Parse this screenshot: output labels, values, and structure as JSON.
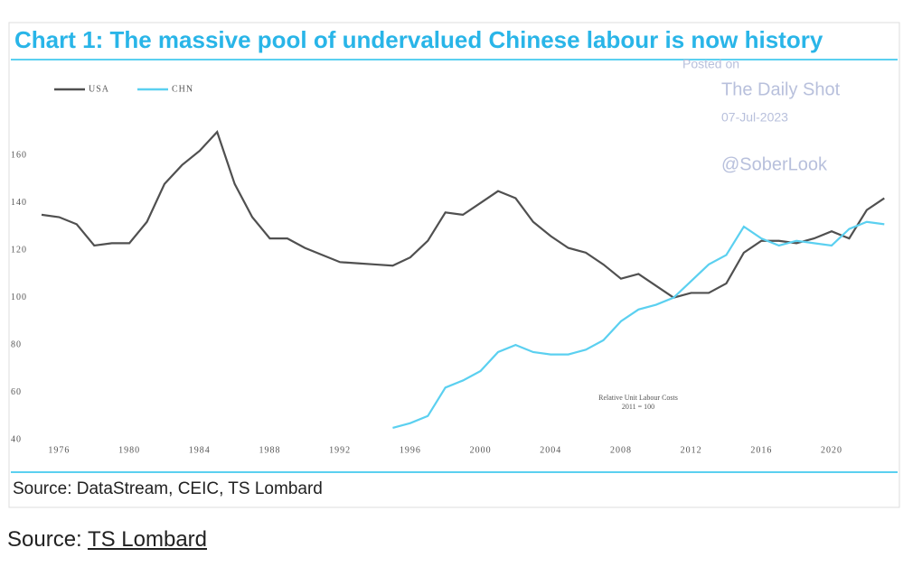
{
  "chart_data": {
    "type": "line",
    "title": "Chart 1: The massive pool of undervalued Chinese labour is now history",
    "watermark": [
      "Posted on",
      "The Daily Shot",
      "07-Jul-2023",
      "@SoberLook"
    ],
    "annotation": [
      "Relative Unit Labour Costs",
      "2011 = 100"
    ],
    "source": "Source: DataStream, CEIC, TS Lombard",
    "x": [
      1975,
      1976,
      1977,
      1978,
      1979,
      1980,
      1981,
      1982,
      1983,
      1984,
      1985,
      1986,
      1987,
      1988,
      1989,
      1990,
      1991,
      1992,
      1993,
      1994,
      1995,
      1996,
      1997,
      1998,
      1999,
      2000,
      2001,
      2002,
      2003,
      2004,
      2005,
      2006,
      2007,
      2008,
      2009,
      2010,
      2011,
      2012,
      2013,
      2014,
      2015,
      2016,
      2017,
      2018,
      2019,
      2020,
      2021,
      2022,
      2023
    ],
    "series": [
      {
        "name": "USA",
        "color": "#505050",
        "values": [
          135,
          134,
          131,
          122,
          123,
          123,
          132,
          148,
          156,
          162,
          170,
          148,
          134,
          125,
          125,
          121,
          118,
          115,
          114.5,
          114,
          113.5,
          117,
          124,
          136,
          135,
          140,
          145,
          142,
          132,
          126,
          121,
          119,
          114,
          108,
          110,
          105,
          100,
          102,
          102,
          106,
          119,
          124,
          124,
          123,
          125,
          128,
          125,
          137,
          142
        ]
      },
      {
        "name": "CHN",
        "color": "#5bd0f0",
        "values": [
          null,
          null,
          null,
          null,
          null,
          null,
          null,
          null,
          null,
          null,
          null,
          null,
          null,
          null,
          null,
          null,
          null,
          null,
          null,
          null,
          45,
          47,
          50,
          62,
          65,
          69,
          77,
          80,
          77,
          76,
          76,
          78,
          82,
          90,
          95,
          97,
          100,
          107,
          114,
          118,
          130,
          125,
          122,
          124,
          123,
          122,
          129,
          132,
          131
        ]
      }
    ],
    "xlim": [
      1975,
      2023.5
    ],
    "xticks": [
      1976,
      1980,
      1984,
      1988,
      1992,
      1996,
      2000,
      2004,
      2008,
      2012,
      2016,
      2020
    ],
    "ylim": [
      40,
      175
    ],
    "yticks": [
      40,
      60,
      80,
      100,
      120,
      140,
      160
    ]
  },
  "footer": {
    "prefix": "Source: ",
    "link": "TS Lombard"
  }
}
